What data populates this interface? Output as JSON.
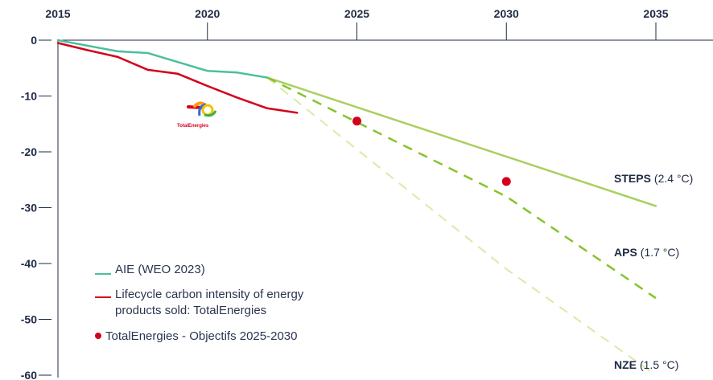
{
  "chart_data": {
    "type": "line",
    "title": "",
    "xlabel": "",
    "ylabel": "",
    "xlim": [
      2015,
      2035
    ],
    "ylim": [
      -60,
      0
    ],
    "x_ticks": [
      2015,
      2020,
      2025,
      2030,
      2035
    ],
    "x_tick_labels": [
      "2015",
      "2020",
      "2025",
      "2030",
      "2035"
    ],
    "y_ticks": [
      0,
      -10,
      -20,
      -30,
      -40,
      -50,
      -60
    ],
    "y_tick_labels": [
      "0",
      "-10",
      "-20",
      "-30",
      "-40",
      "-50",
      "-60"
    ],
    "grid": false,
    "legend_position": "bottom-left",
    "series": [
      {
        "id": "aie",
        "name": "AIE (WEO 2023)",
        "style": "solid",
        "color": "#4dbf9a",
        "x": [
          2015,
          2017,
          2018,
          2020,
          2021,
          2022
        ],
        "y": [
          0,
          -2,
          -2.3,
          -5.5,
          -5.8,
          -6.7
        ]
      },
      {
        "id": "te",
        "name": "Lifecycle carbon intensity of energy products sold: TotalEnergies",
        "style": "solid",
        "color": "#d4001a",
        "x": [
          2015,
          2016,
          2017,
          2018,
          2019,
          2020,
          2021,
          2022,
          2023
        ],
        "y": [
          -0.5,
          -1.8,
          -3,
          -5.3,
          -6,
          -8.2,
          -10.3,
          -12.2,
          -13
        ]
      },
      {
        "id": "steps",
        "name": "STEPS",
        "temp": "(2.4 °C)",
        "style": "solid",
        "color": "#a8d061",
        "x": [
          2022,
          2035
        ],
        "y": [
          -6.7,
          -29.7
        ]
      },
      {
        "id": "aps",
        "name": "APS",
        "temp": "(1.7 °C)",
        "style": "dashed",
        "color": "#86c42c",
        "x": [
          2022,
          2030,
          2035
        ],
        "y": [
          -6.7,
          -28,
          -46.2
        ]
      },
      {
        "id": "nze",
        "name": "NZE",
        "temp": "(1.5 °C)",
        "style": "dashed",
        "color": "#d9eaa8",
        "x": [
          2022,
          2030,
          2035
        ],
        "y": [
          -6.7,
          -41,
          -60
        ]
      }
    ],
    "points": {
      "name": "TotalEnergies - Objectifs 2025-2030",
      "color": "#d4001a",
      "x": [
        2025,
        2030
      ],
      "y": [
        -14.5,
        -25.3
      ]
    },
    "logo_text": "TotalEnergies"
  }
}
